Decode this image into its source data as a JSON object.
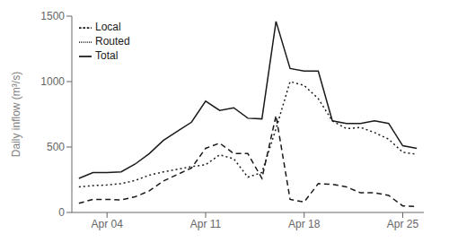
{
  "chart_data": {
    "type": "line",
    "x": [
      1,
      2,
      3,
      4,
      5,
      6,
      7,
      8,
      9,
      10,
      11,
      12,
      13,
      14,
      15,
      16,
      17,
      18,
      19,
      20,
      21,
      22,
      23,
      24,
      25
    ],
    "xlim": [
      0.5,
      25.5
    ],
    "xticks": [
      {
        "value": 3,
        "label": "Apr 04"
      },
      {
        "value": 10,
        "label": "Apr 11"
      },
      {
        "value": 17,
        "label": "Apr 18"
      },
      {
        "value": 24,
        "label": "Apr 25"
      }
    ],
    "ylim": [
      0,
      1500
    ],
    "yticks": [
      0,
      500,
      1000,
      1500
    ],
    "ylabel": "Daily inflow (m³/s)",
    "legend": "upper left",
    "grid": false,
    "series": [
      {
        "name": "Total",
        "color": "#1a1a1a",
        "line_style": "solid",
        "values": [
          260,
          305,
          305,
          310,
          370,
          450,
          550,
          620,
          690,
          850,
          780,
          800,
          720,
          715,
          1460,
          1100,
          1080,
          1080,
          700,
          680,
          680,
          700,
          680,
          510,
          490
        ]
      },
      {
        "name": "Routed",
        "color": "#1a1a1a",
        "line_style": "dotted",
        "values": [
          195,
          205,
          210,
          220,
          245,
          285,
          310,
          330,
          350,
          365,
          440,
          410,
          270,
          305,
          640,
          1000,
          970,
          870,
          700,
          640,
          650,
          610,
          560,
          460,
          445
        ]
      },
      {
        "name": "Local",
        "color": "#1a1a1a",
        "line_style": "dashed",
        "values": [
          70,
          100,
          100,
          95,
          120,
          165,
          240,
          290,
          340,
          490,
          530,
          450,
          450,
          260,
          740,
          100,
          80,
          220,
          215,
          195,
          150,
          150,
          130,
          50,
          45
        ]
      }
    ]
  }
}
